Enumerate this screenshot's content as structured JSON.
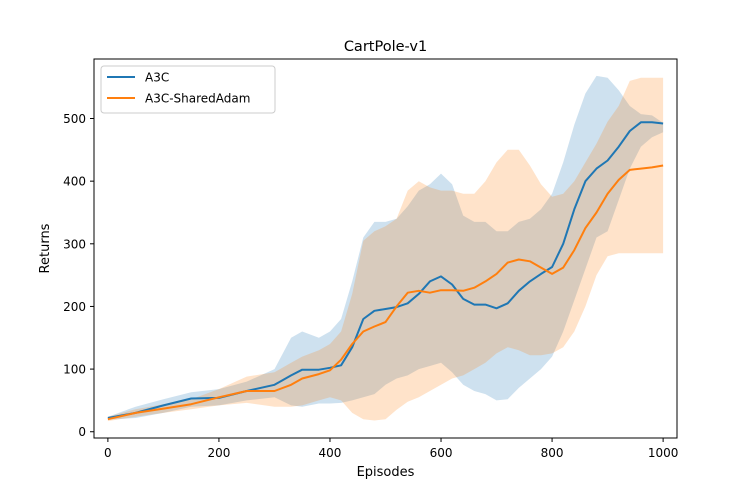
{
  "chart_data": {
    "type": "line",
    "title": "CartPole-v1",
    "xlabel": "Episodes",
    "ylabel": "Returns",
    "xlim": [
      -25,
      1025
    ],
    "ylim": [
      -10,
      595
    ],
    "xticks": [
      0,
      200,
      400,
      600,
      800,
      1000
    ],
    "yticks": [
      0,
      100,
      200,
      300,
      400,
      500
    ],
    "grid": false,
    "legend_position": "top-left",
    "x": [
      0,
      50,
      100,
      150,
      200,
      250,
      300,
      330,
      350,
      380,
      400,
      420,
      440,
      460,
      480,
      500,
      520,
      540,
      560,
      580,
      600,
      620,
      640,
      660,
      680,
      700,
      720,
      740,
      760,
      780,
      800,
      820,
      840,
      860,
      880,
      900,
      920,
      940,
      960,
      980,
      1000
    ],
    "series": [
      {
        "name": "A3C",
        "color": "#1f77b4",
        "band_color": "rgba(31,119,180,0.22)",
        "mean": [
          22,
          30,
          42,
          53,
          54,
          65,
          75,
          90,
          99,
          99,
          102,
          106,
          135,
          180,
          193,
          196,
          199,
          205,
          220,
          240,
          248,
          235,
          212,
          203,
          203,
          197,
          205,
          225,
          240,
          252,
          263,
          300,
          355,
          400,
          420,
          433,
          455,
          480,
          494,
          494,
          492
        ],
        "upper": [
          24,
          40,
          52,
          63,
          68,
          80,
          100,
          150,
          160,
          150,
          160,
          180,
          240,
          310,
          335,
          335,
          340,
          360,
          385,
          395,
          412,
          395,
          345,
          335,
          335,
          320,
          320,
          335,
          340,
          355,
          380,
          430,
          490,
          540,
          568,
          565,
          545,
          520,
          507,
          505,
          493
        ],
        "lower": [
          19,
          22,
          30,
          40,
          42,
          50,
          55,
          42,
          40,
          45,
          45,
          46,
          50,
          55,
          60,
          75,
          85,
          90,
          100,
          105,
          110,
          95,
          75,
          65,
          60,
          50,
          52,
          70,
          85,
          100,
          120,
          160,
          210,
          260,
          310,
          320,
          370,
          420,
          455,
          470,
          478
        ]
      },
      {
        "name": "A3C-SharedAdam",
        "color": "#ff7f0e",
        "band_color": "rgba(255,127,14,0.22)",
        "mean": [
          20,
          30,
          37,
          44,
          55,
          65,
          65,
          75,
          85,
          92,
          98,
          115,
          140,
          160,
          168,
          175,
          200,
          222,
          225,
          222,
          226,
          226,
          225,
          230,
          240,
          252,
          270,
          275,
          272,
          262,
          252,
          262,
          290,
          325,
          350,
          380,
          402,
          418,
          420,
          422,
          425
        ],
        "upper": [
          24,
          36,
          44,
          52,
          68,
          88,
          95,
          110,
          120,
          130,
          140,
          160,
          220,
          305,
          320,
          328,
          340,
          385,
          400,
          390,
          385,
          385,
          380,
          380,
          400,
          430,
          450,
          450,
          425,
          395,
          375,
          380,
          400,
          430,
          460,
          495,
          520,
          560,
          565,
          565,
          565
        ],
        "lower": [
          17,
          24,
          30,
          36,
          42,
          46,
          40,
          40,
          42,
          50,
          55,
          50,
          30,
          20,
          18,
          20,
          35,
          48,
          55,
          65,
          75,
          85,
          90,
          100,
          110,
          125,
          135,
          130,
          122,
          122,
          125,
          135,
          160,
          200,
          250,
          280,
          285,
          285,
          285,
          285,
          285
        ]
      }
    ]
  }
}
